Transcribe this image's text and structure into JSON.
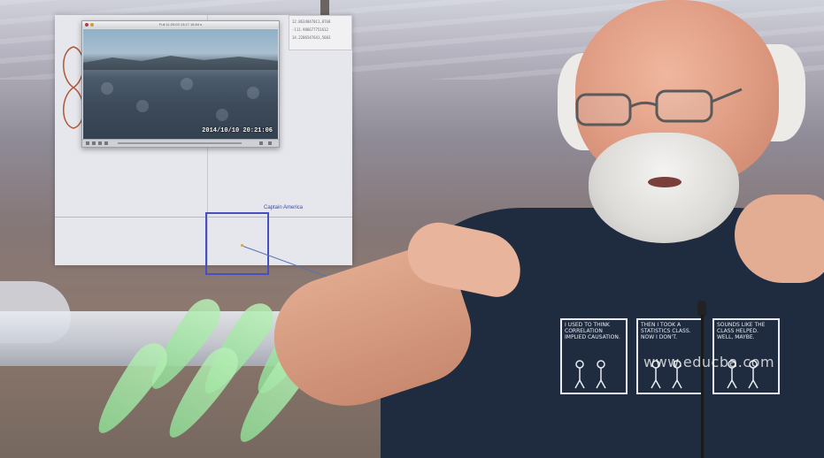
{
  "screen": {
    "video_window": {
      "title": "Full 11:20:03 13:17 16.84 s"
    },
    "video_timestamp": "2014/10/10 20:21:06",
    "readout_lines": [
      "12.8634847011,8768",
      "-111.986677751612",
      "14.2206547641,5603"
    ],
    "target_label": "Captain America"
  },
  "comic_panels": [
    "I used to think correlation implied causation.",
    "Then I took a statistics class. Now I don't.",
    "Sounds like the class helped. Well, maybe."
  ],
  "watermark": "www.educba.com"
}
